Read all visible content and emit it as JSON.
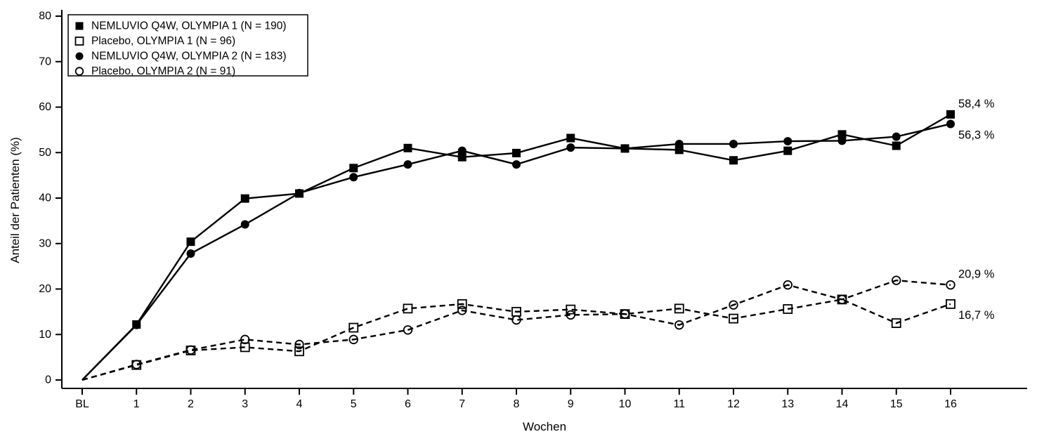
{
  "chart_data": {
    "type": "line",
    "title": "",
    "xlabel": "Wochen",
    "ylabel": "Anteil der Patienten (%)",
    "x_categories": [
      "BL",
      "1",
      "2",
      "3",
      "4",
      "5",
      "6",
      "7",
      "8",
      "9",
      "10",
      "11",
      "12",
      "13",
      "14",
      "15",
      "16"
    ],
    "ylim": [
      0,
      80
    ],
    "yticks": [
      0,
      10,
      20,
      30,
      40,
      50,
      60,
      70,
      80
    ],
    "grid": false,
    "legend_position": "top-left",
    "colors": {
      "foreground": "#000000",
      "background": "#ffffff"
    },
    "series": [
      {
        "name": "NEMLUVIO Q4W, OLYMPIA 1 (N = 190)",
        "marker": "filled-square",
        "line": "solid",
        "end_label": "58,4 %",
        "end_label_side": "above",
        "values": [
          0,
          12.2,
          30.4,
          39.9,
          41.0,
          46.6,
          51.0,
          49.0,
          49.9,
          53.2,
          50.9,
          50.6,
          48.3,
          50.4,
          54.0,
          51.5,
          58.4
        ]
      },
      {
        "name": "Placebo, OLYMPIA 1 (N = 96)",
        "marker": "open-square",
        "line": "dashed",
        "end_label": "16,7 %",
        "end_label_side": "below",
        "values": [
          0,
          3.3,
          6.5,
          7.2,
          6.3,
          11.5,
          15.7,
          16.7,
          15.0,
          15.5,
          14.5,
          15.7,
          13.5,
          15.6,
          17.7,
          12.5,
          16.7
        ]
      },
      {
        "name": "NEMLUVIO Q4W, OLYMPIA 2 (N = 183)",
        "marker": "filled-circle",
        "line": "solid",
        "end_label": "56,3 %",
        "end_label_side": "below",
        "values": [
          0,
          12.1,
          27.8,
          34.2,
          41.1,
          44.6,
          47.4,
          50.4,
          47.4,
          51.1,
          50.9,
          51.9,
          51.9,
          52.5,
          52.6,
          53.5,
          56.3
        ]
      },
      {
        "name": "Placebo, OLYMPIA 2 (N = 91)",
        "marker": "open-circle",
        "line": "dashed",
        "end_label": "20,9 %",
        "end_label_side": "above",
        "values": [
          0,
          3.4,
          6.6,
          8.9,
          7.8,
          8.9,
          11.0,
          15.3,
          13.2,
          14.3,
          14.5,
          12.1,
          16.5,
          20.9,
          17.7,
          21.9,
          20.9
        ]
      }
    ]
  }
}
